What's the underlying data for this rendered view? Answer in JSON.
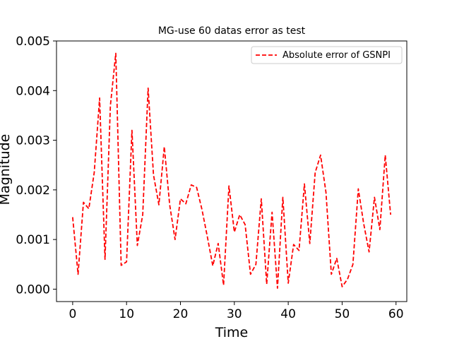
{
  "chart_data": {
    "type": "line",
    "title": "MG-use 60 datas error as test",
    "xlabel": "Time",
    "ylabel": "Magnitude",
    "xlim": [
      -3,
      62
    ],
    "ylim": [
      -0.00025,
      0.005
    ],
    "xticks": [
      0,
      10,
      20,
      30,
      40,
      50,
      60
    ],
    "xtick_labels": [
      "0",
      "10",
      "20",
      "30",
      "40",
      "50",
      "60"
    ],
    "yticks": [
      0.0,
      0.001,
      0.002,
      0.003,
      0.004,
      0.005
    ],
    "ytick_labels": [
      "0.000",
      "0.001",
      "0.002",
      "0.003",
      "0.004",
      "0.005"
    ],
    "grid": false,
    "legend_position": "top-right",
    "series": [
      {
        "name": "Absolute error of GSNPI",
        "color": "#ff0000",
        "linestyle": "dashed",
        "x": [
          0,
          1,
          2,
          3,
          4,
          5,
          6,
          7,
          8,
          9,
          10,
          11,
          12,
          13,
          14,
          15,
          16,
          17,
          18,
          19,
          20,
          21,
          22,
          23,
          24,
          25,
          26,
          27,
          28,
          29,
          30,
          31,
          32,
          33,
          34,
          35,
          36,
          37,
          38,
          39,
          40,
          41,
          42,
          43,
          44,
          45,
          46,
          47,
          48,
          49,
          50,
          51,
          52,
          53,
          54,
          55,
          56,
          57,
          58,
          59
        ],
        "y": [
          0.00145,
          0.0003,
          0.00175,
          0.00162,
          0.00235,
          0.00385,
          0.0006,
          0.0037,
          0.00475,
          0.00048,
          0.00055,
          0.0032,
          0.00088,
          0.0015,
          0.00405,
          0.0023,
          0.0017,
          0.00287,
          0.0017,
          0.001,
          0.00182,
          0.00172,
          0.0021,
          0.00205,
          0.0016,
          0.00105,
          0.00047,
          0.00092,
          8e-05,
          0.00208,
          0.00115,
          0.0015,
          0.0013,
          0.0003,
          0.0005,
          0.00182,
          0.0001,
          0.00155,
          2e-05,
          0.00185,
          0.00012,
          0.0009,
          0.00078,
          0.00212,
          0.00092,
          0.00235,
          0.0027,
          0.00195,
          0.0003,
          0.00062,
          5e-05,
          0.0002,
          0.0005,
          0.00202,
          0.00132,
          0.00075,
          0.00185,
          0.0012,
          0.0027,
          0.0015
        ]
      }
    ]
  }
}
